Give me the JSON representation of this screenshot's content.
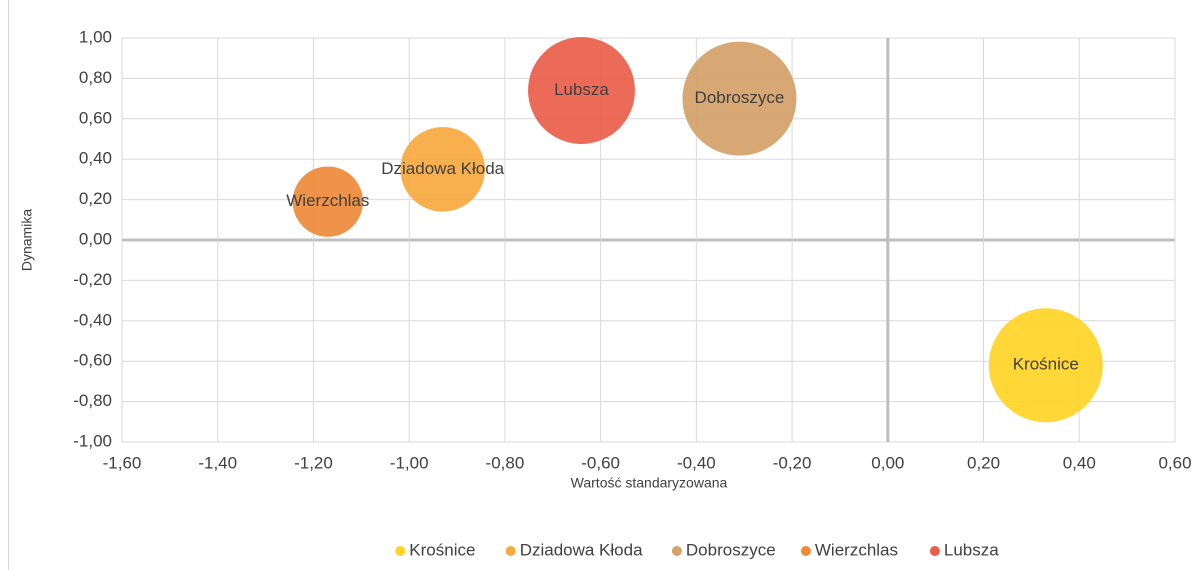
{
  "chart_data": {
    "type": "bubble",
    "xlabel": "Wartość standaryzowana",
    "ylabel": "Dynamika",
    "xlim": [
      -1.6,
      0.6
    ],
    "ylim": [
      -1.0,
      1.0
    ],
    "xticks": [
      {
        "value": -1.6,
        "label": "-1,60"
      },
      {
        "value": -1.4,
        "label": "-1,40"
      },
      {
        "value": -1.2,
        "label": "-1,20"
      },
      {
        "value": -1.0,
        "label": "-1,00"
      },
      {
        "value": -0.8,
        "label": "-0,80"
      },
      {
        "value": -0.6,
        "label": "-0,60"
      },
      {
        "value": -0.4,
        "label": "-0,40"
      },
      {
        "value": -0.2,
        "label": "-0,20"
      },
      {
        "value": 0,
        "label": "0,00"
      },
      {
        "value": 0.2,
        "label": "0,20"
      },
      {
        "value": 0.4,
        "label": "0,40"
      },
      {
        "value": 0.6,
        "label": "0,60"
      }
    ],
    "yticks": [
      {
        "value": 1.0,
        "label": "1,00"
      },
      {
        "value": 0.8,
        "label": "0,80"
      },
      {
        "value": 0.6,
        "label": "0,60"
      },
      {
        "value": 0.4,
        "label": "0,40"
      },
      {
        "value": 0.2,
        "label": "0,20"
      },
      {
        "value": 0,
        "label": "0,00"
      },
      {
        "value": -0.2,
        "label": "-0,20"
      },
      {
        "value": -0.4,
        "label": "-0,40"
      },
      {
        "value": -0.6,
        "label": "-0,60"
      },
      {
        "value": -0.8,
        "label": "-0,80"
      },
      {
        "value": -1.0,
        "label": "-1,00"
      }
    ],
    "grid": true,
    "legend": "bottom",
    "series": [
      {
        "name": "Krośnice",
        "color": "#ffd426",
        "x": [
          0.33
        ],
        "values": [
          -0.62
        ],
        "sizes": [
          100
        ]
      },
      {
        "name": "Dziadowa Kłoda",
        "color": "#f7a940",
        "x": [
          -0.93
        ],
        "values": [
          0.35
        ],
        "sizes": [
          55
        ]
      },
      {
        "name": "Dobroszyce",
        "color": "#d4a167",
        "x": [
          -0.31
        ],
        "values": [
          0.7
        ],
        "sizes": [
          100
        ]
      },
      {
        "name": "Wierzchlas",
        "color": "#ee8a3a",
        "x": [
          -1.17
        ],
        "values": [
          0.19
        ],
        "sizes": [
          38
        ]
      },
      {
        "name": "Lubsza",
        "color": "#ea5e4a",
        "x": [
          -0.64
        ],
        "values": [
          0.74
        ],
        "sizes": [
          88
        ]
      }
    ]
  }
}
